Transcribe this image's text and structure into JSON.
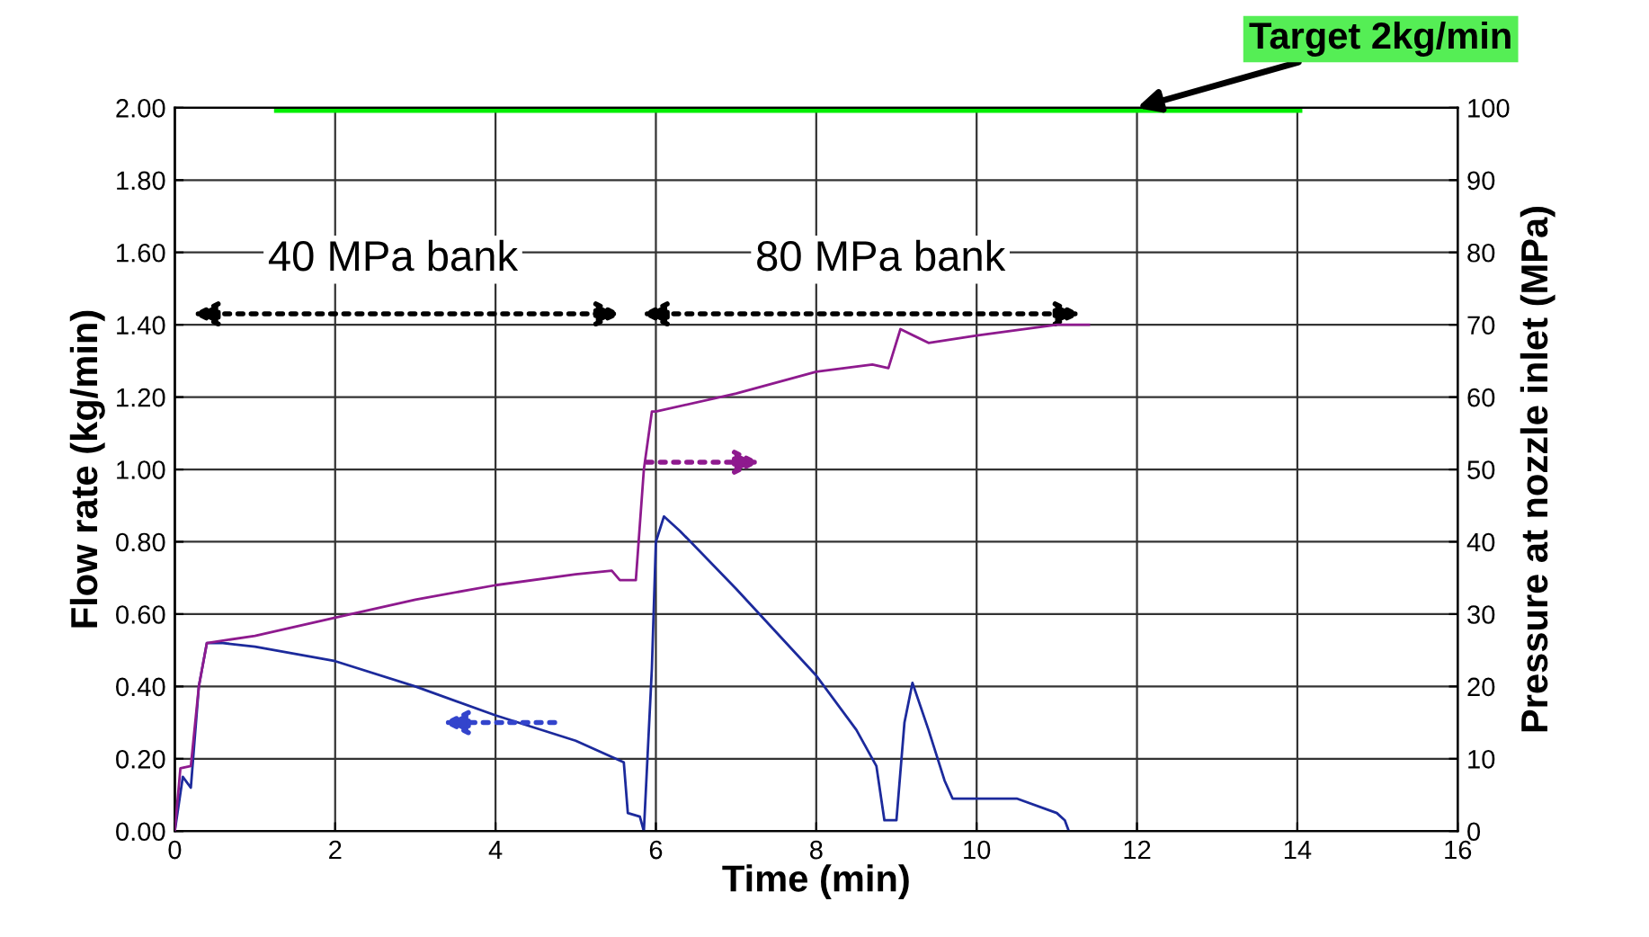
{
  "chart_data": {
    "type": "line",
    "xlabel": "Time (min)",
    "ylabel": "Flow rate (kg/min)",
    "y2label": "Pressure at nozzle inlet (MPa)",
    "annotations": [
      {
        "text": "Target 2kg/min",
        "x": 12,
        "y": 2.0
      },
      "40 MPa bank",
      "80 MPa bank"
    ],
    "series": [
      {
        "color": "#1c2a9c",
        "x": [
          0,
          0.1,
          0.2,
          0.3,
          0.4,
          0.6,
          1,
          2,
          3,
          4,
          5,
          5.5,
          5.6,
          5.65,
          5.8,
          5.85,
          5.95,
          6.0,
          6.1,
          6.3,
          7,
          8,
          8.5,
          8.75,
          8.85,
          9.0,
          9.1,
          9.2,
          9.4,
          9.6,
          9.7,
          10,
          10.5,
          11,
          11.1,
          11.15
        ],
        "values": [
          0,
          0.15,
          0.12,
          0.4,
          0.52,
          0.52,
          0.51,
          0.47,
          0.4,
          0.32,
          0.25,
          0.2,
          0.19,
          0.05,
          0.04,
          0.0,
          0.45,
          0.8,
          0.87,
          0.83,
          0.67,
          0.43,
          0.28,
          0.18,
          0.03,
          0.03,
          0.3,
          0.41,
          0.28,
          0.14,
          0.09,
          0.09,
          0.09,
          0.05,
          0.03,
          0.0
        ]
      },
      {
        "color": "#8e1a8e",
        "axis": "y2",
        "x": [
          0,
          0.07,
          0.2,
          0.3,
          0.4,
          1,
          2,
          3,
          4,
          5,
          5.45,
          5.55,
          5.75,
          5.85,
          5.95,
          6,
          7,
          8,
          8.7,
          8.9,
          9.05,
          9.4,
          10,
          11,
          11.4
        ],
        "values": [
          0,
          8.7,
          9,
          20,
          26,
          27,
          29.5,
          32,
          34,
          35.5,
          36,
          34.7,
          34.7,
          50,
          58,
          58,
          60.5,
          63.5,
          64.5,
          64,
          69.4,
          67.5,
          68.5,
          70,
          70
        ]
      },
      {
        "color": "#00ee00",
        "x": [
          1.3,
          14
        ],
        "values": [
          2.0,
          2.0
        ]
      }
    ],
    "xlim": [
      0,
      16
    ],
    "xticks": [
      0,
      2,
      4,
      6,
      8,
      10,
      12,
      14,
      16
    ],
    "ylim": [
      0,
      2
    ],
    "yticks": [
      {
        "value": 0,
        "label": "0.00"
      },
      {
        "value": 0.2,
        "label": "0.20"
      },
      {
        "value": 0.4,
        "label": "0.40"
      },
      {
        "value": 0.6,
        "label": "0.60"
      },
      {
        "value": 0.8,
        "label": "0.80"
      },
      {
        "value": 1.0,
        "label": "1.00"
      },
      {
        "value": 1.2,
        "label": "1.20"
      },
      {
        "value": 1.4,
        "label": "1.40"
      },
      {
        "value": 1.6,
        "label": "1.60"
      },
      {
        "value": 1.8,
        "label": "1.80"
      },
      {
        "value": 2.0,
        "label": "2.00"
      }
    ],
    "y2lim": [
      0,
      100
    ],
    "y2ticks": [
      0,
      10,
      20,
      30,
      40,
      50,
      60,
      70,
      80,
      90,
      100
    ],
    "grid": true,
    "legend": false
  }
}
